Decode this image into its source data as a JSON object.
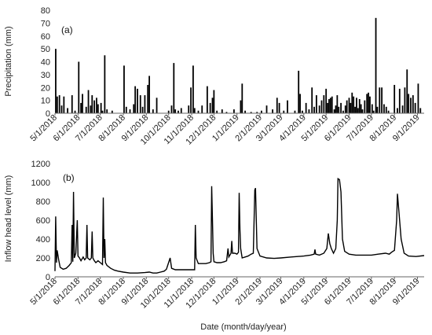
{
  "chart_data": [
    {
      "type": "bar",
      "panel_label": "(a)",
      "xlabel": "",
      "ylabel": "Precipitation (mm)",
      "ylim": [
        0,
        80
      ],
      "yticks": [
        0,
        10,
        20,
        30,
        40,
        50,
        60,
        70,
        80
      ],
      "xlim": [
        "2018-05-01",
        "2019-09-10"
      ],
      "xticks": [
        "2018-05-01",
        "2018-06-01",
        "2018-07-01",
        "2018-08-01",
        "2018-09-01",
        "2018-10-01",
        "2018-11-01",
        "2018-12-01",
        "2019-01-01",
        "2019-02-01",
        "2019-03-01",
        "2019-04-01",
        "2019-05-01",
        "2019-06-01",
        "2019-07-01",
        "2019-08-01",
        "2019-09-01"
      ],
      "xtick_labels": [
        "5/1/2018",
        "6/1/2018",
        "7/1/2018",
        "8/1/2018",
        "9/1/2018",
        "10/1/2018",
        "11/1/2018",
        "12/1/2018",
        "1/1/2019",
        "2/1/2019",
        "3/1/2019",
        "4/1/2019",
        "5/1/2019",
        "6/1/2019",
        "7/1/2019",
        "8/1/2019",
        "9/1/2019"
      ],
      "grid": false,
      "points": [
        [
          "2018-05-02",
          50
        ],
        [
          "2018-05-04",
          13
        ],
        [
          "2018-05-07",
          14
        ],
        [
          "2018-05-10",
          6
        ],
        [
          "2018-05-13",
          13
        ],
        [
          "2018-05-18",
          4
        ],
        [
          "2018-05-24",
          14
        ],
        [
          "2018-05-28",
          2
        ],
        [
          "2018-06-02",
          40
        ],
        [
          "2018-06-05",
          8
        ],
        [
          "2018-06-07",
          15
        ],
        [
          "2018-06-12",
          5
        ],
        [
          "2018-06-15",
          18
        ],
        [
          "2018-06-18",
          6
        ],
        [
          "2018-06-20",
          14
        ],
        [
          "2018-06-23",
          10
        ],
        [
          "2018-06-26",
          12
        ],
        [
          "2018-06-28",
          7
        ],
        [
          "2018-07-02",
          8
        ],
        [
          "2018-07-04",
          2
        ],
        [
          "2018-07-07",
          45
        ],
        [
          "2018-07-10",
          3
        ],
        [
          "2018-07-17",
          2
        ],
        [
          "2018-08-02",
          37
        ],
        [
          "2018-08-05",
          5
        ],
        [
          "2018-08-10",
          3
        ],
        [
          "2018-08-15",
          7
        ],
        [
          "2018-08-17",
          21
        ],
        [
          "2018-08-20",
          19
        ],
        [
          "2018-08-24",
          14
        ],
        [
          "2018-08-27",
          5
        ],
        [
          "2018-08-30",
          14
        ],
        [
          "2018-09-03",
          22
        ],
        [
          "2018-09-05",
          29
        ],
        [
          "2018-09-10",
          3
        ],
        [
          "2018-09-15",
          12
        ],
        [
          "2018-10-01",
          2
        ],
        [
          "2018-10-05",
          6
        ],
        [
          "2018-10-08",
          39
        ],
        [
          "2018-10-10",
          3
        ],
        [
          "2018-10-14",
          2
        ],
        [
          "2018-10-18",
          4
        ],
        [
          "2018-10-28",
          6
        ],
        [
          "2018-10-31",
          20
        ],
        [
          "2018-11-03",
          37
        ],
        [
          "2018-11-05",
          4
        ],
        [
          "2018-11-10",
          2
        ],
        [
          "2018-11-15",
          6
        ],
        [
          "2018-11-22",
          21
        ],
        [
          "2018-11-26",
          8
        ],
        [
          "2018-11-29",
          12
        ],
        [
          "2018-12-01",
          18
        ],
        [
          "2018-12-05",
          2
        ],
        [
          "2018-12-12",
          3
        ],
        [
          "2018-12-18",
          1
        ],
        [
          "2018-12-28",
          3
        ],
        [
          "2019-01-06",
          10
        ],
        [
          "2019-01-08",
          23
        ],
        [
          "2019-01-12",
          2
        ],
        [
          "2019-01-20",
          1
        ],
        [
          "2019-01-28",
          1
        ],
        [
          "2019-02-03",
          2
        ],
        [
          "2019-02-10",
          6
        ],
        [
          "2019-02-18",
          3
        ],
        [
          "2019-02-24",
          12
        ],
        [
          "2019-02-27",
          8
        ],
        [
          "2019-03-05",
          2
        ],
        [
          "2019-03-10",
          10
        ],
        [
          "2019-03-20",
          2
        ],
        [
          "2019-03-25",
          33
        ],
        [
          "2019-03-27",
          15
        ],
        [
          "2019-03-30",
          2
        ],
        [
          "2019-04-04",
          8
        ],
        [
          "2019-04-08",
          3
        ],
        [
          "2019-04-12",
          20
        ],
        [
          "2019-04-15",
          5
        ],
        [
          "2019-04-18",
          14
        ],
        [
          "2019-04-22",
          6
        ],
        [
          "2019-04-25",
          10
        ],
        [
          "2019-04-28",
          14
        ],
        [
          "2019-05-01",
          19
        ],
        [
          "2019-05-03",
          8
        ],
        [
          "2019-05-05",
          11
        ],
        [
          "2019-05-07",
          12
        ],
        [
          "2019-05-09",
          13
        ],
        [
          "2019-05-12",
          3
        ],
        [
          "2019-05-14",
          6
        ],
        [
          "2019-05-16",
          14
        ],
        [
          "2019-05-18",
          5
        ],
        [
          "2019-05-21",
          8
        ],
        [
          "2019-05-24",
          2
        ],
        [
          "2019-05-27",
          6
        ],
        [
          "2019-05-29",
          10
        ],
        [
          "2019-06-01",
          12
        ],
        [
          "2019-06-03",
          8
        ],
        [
          "2019-06-05",
          16
        ],
        [
          "2019-06-07",
          13
        ],
        [
          "2019-06-09",
          5
        ],
        [
          "2019-06-11",
          12
        ],
        [
          "2019-06-13",
          4
        ],
        [
          "2019-06-15",
          11
        ],
        [
          "2019-06-17",
          7
        ],
        [
          "2019-06-19",
          3
        ],
        [
          "2019-06-22",
          10
        ],
        [
          "2019-06-25",
          15
        ],
        [
          "2019-06-27",
          16
        ],
        [
          "2019-06-29",
          13
        ],
        [
          "2019-07-02",
          7
        ],
        [
          "2019-07-04",
          2
        ],
        [
          "2019-07-07",
          74
        ],
        [
          "2019-07-09",
          5
        ],
        [
          "2019-07-12",
          20
        ],
        [
          "2019-07-15",
          20
        ],
        [
          "2019-07-18",
          7
        ],
        [
          "2019-07-21",
          5
        ],
        [
          "2019-07-24",
          2
        ],
        [
          "2019-08-01",
          22
        ],
        [
          "2019-08-05",
          4
        ],
        [
          "2019-08-08",
          19
        ],
        [
          "2019-08-12",
          6
        ],
        [
          "2019-08-15",
          20
        ],
        [
          "2019-08-18",
          34
        ],
        [
          "2019-08-20",
          15
        ],
        [
          "2019-08-23",
          12
        ],
        [
          "2019-08-26",
          14
        ],
        [
          "2019-08-29",
          8
        ],
        [
          "2019-09-02",
          23
        ],
        [
          "2019-09-05",
          4
        ]
      ]
    },
    {
      "type": "line",
      "panel_label": "(b)",
      "xlabel": "Date (month/day/year)",
      "ylabel": "Inflow head level (mm)",
      "ylim": [
        0,
        1200
      ],
      "yticks": [
        0,
        200,
        400,
        600,
        800,
        1000,
        1200
      ],
      "xlim": [
        "2018-05-01",
        "2019-09-10"
      ],
      "xticks": [
        "2018-05-01",
        "2018-06-01",
        "2018-07-01",
        "2018-08-01",
        "2018-09-01",
        "2018-10-01",
        "2018-11-01",
        "2018-12-01",
        "2019-01-01",
        "2019-02-01",
        "2019-03-01",
        "2019-04-01",
        "2019-05-01",
        "2019-06-01",
        "2019-07-01",
        "2019-08-01",
        "2019-09-01"
      ],
      "xtick_labels": [
        "5/1/2018",
        "6/1/2018",
        "7/1/2018",
        "8/1/2018",
        "9/1/2018",
        "10/1/2018",
        "11/1/2018",
        "12/1/2018",
        "1/1/2019",
        "2/1/2019",
        "3/1/2019",
        "4/1/2019",
        "5/1/2019",
        "6/1/2019",
        "7/1/2019",
        "8/1/2019",
        "9/1/2019"
      ],
      "grid": false,
      "points": [
        [
          "2018-05-01",
          60
        ],
        [
          "2018-05-02",
          640
        ],
        [
          "2018-05-03",
          150
        ],
        [
          "2018-05-04",
          280
        ],
        [
          "2018-05-06",
          180
        ],
        [
          "2018-05-08",
          100
        ],
        [
          "2018-05-12",
          80
        ],
        [
          "2018-05-16",
          90
        ],
        [
          "2018-05-20",
          120
        ],
        [
          "2018-05-23",
          150
        ],
        [
          "2018-05-24",
          550
        ],
        [
          "2018-05-25",
          160
        ],
        [
          "2018-05-26",
          900
        ],
        [
          "2018-05-27",
          200
        ],
        [
          "2018-05-29",
          250
        ],
        [
          "2018-05-31",
          600
        ],
        [
          "2018-06-01",
          220
        ],
        [
          "2018-06-03",
          200
        ],
        [
          "2018-06-05",
          170
        ],
        [
          "2018-06-08",
          210
        ],
        [
          "2018-06-10",
          180
        ],
        [
          "2018-06-12",
          200
        ],
        [
          "2018-06-13",
          550
        ],
        [
          "2018-06-14",
          200
        ],
        [
          "2018-06-17",
          180
        ],
        [
          "2018-06-19",
          200
        ],
        [
          "2018-06-20",
          480
        ],
        [
          "2018-06-21",
          200
        ],
        [
          "2018-06-23",
          170
        ],
        [
          "2018-06-25",
          150
        ],
        [
          "2018-06-28",
          170
        ],
        [
          "2018-07-01",
          150
        ],
        [
          "2018-07-04",
          130
        ],
        [
          "2018-07-05",
          840
        ],
        [
          "2018-07-06",
          200
        ],
        [
          "2018-07-07",
          400
        ],
        [
          "2018-07-08",
          150
        ],
        [
          "2018-07-10",
          120
        ],
        [
          "2018-07-15",
          90
        ],
        [
          "2018-07-20",
          70
        ],
        [
          "2018-07-25",
          60
        ],
        [
          "2018-08-01",
          50
        ],
        [
          "2018-08-10",
          40
        ],
        [
          "2018-08-20",
          40
        ],
        [
          "2018-08-30",
          45
        ],
        [
          "2018-09-05",
          50
        ],
        [
          "2018-09-10",
          40
        ],
        [
          "2018-09-15",
          40
        ],
        [
          "2018-09-20",
          50
        ],
        [
          "2018-09-25",
          60
        ],
        [
          "2018-09-28",
          80
        ],
        [
          "2018-10-03",
          200
        ],
        [
          "2018-10-05",
          90
        ],
        [
          "2018-10-10",
          75
        ],
        [
          "2018-10-20",
          75
        ],
        [
          "2018-10-31",
          75
        ],
        [
          "2018-11-05",
          75
        ],
        [
          "2018-11-06",
          550
        ],
        [
          "2018-11-07",
          200
        ],
        [
          "2018-11-10",
          140
        ],
        [
          "2018-11-15",
          140
        ],
        [
          "2018-11-20",
          140
        ],
        [
          "2018-11-25",
          150
        ],
        [
          "2018-11-27",
          160
        ],
        [
          "2018-11-28",
          960
        ],
        [
          "2018-11-29",
          600
        ],
        [
          "2018-11-30",
          250
        ],
        [
          "2018-12-01",
          160
        ],
        [
          "2018-12-05",
          150
        ],
        [
          "2018-12-10",
          150
        ],
        [
          "2018-12-15",
          160
        ],
        [
          "2018-12-18",
          170
        ],
        [
          "2018-12-20",
          300
        ],
        [
          "2018-12-21",
          210
        ],
        [
          "2018-12-24",
          250
        ],
        [
          "2018-12-25",
          380
        ],
        [
          "2018-12-26",
          250
        ],
        [
          "2018-12-29",
          250
        ],
        [
          "2019-01-01",
          240
        ],
        [
          "2019-01-03",
          260
        ],
        [
          "2019-01-04",
          890
        ],
        [
          "2019-01-05",
          500
        ],
        [
          "2019-01-06",
          300
        ],
        [
          "2019-01-08",
          200
        ],
        [
          "2019-01-12",
          210
        ],
        [
          "2019-01-16",
          220
        ],
        [
          "2019-01-20",
          240
        ],
        [
          "2019-01-23",
          250
        ],
        [
          "2019-01-25",
          920
        ],
        [
          "2019-01-26",
          940
        ],
        [
          "2019-01-27",
          600
        ],
        [
          "2019-01-28",
          300
        ],
        [
          "2019-02-01",
          220
        ],
        [
          "2019-02-10",
          200
        ],
        [
          "2019-02-20",
          195
        ],
        [
          "2019-03-01",
          200
        ],
        [
          "2019-03-15",
          210
        ],
        [
          "2019-04-01",
          220
        ],
        [
          "2019-04-10",
          230
        ],
        [
          "2019-04-15",
          240
        ],
        [
          "2019-04-16",
          290
        ],
        [
          "2019-04-17",
          240
        ],
        [
          "2019-04-22",
          230
        ],
        [
          "2019-04-28",
          250
        ],
        [
          "2019-05-02",
          300
        ],
        [
          "2019-05-04",
          460
        ],
        [
          "2019-05-06",
          350
        ],
        [
          "2019-05-08",
          300
        ],
        [
          "2019-05-11",
          250
        ],
        [
          "2019-05-14",
          300
        ],
        [
          "2019-05-16",
          600
        ],
        [
          "2019-05-17",
          1040
        ],
        [
          "2019-05-19",
          1030
        ],
        [
          "2019-05-21",
          900
        ],
        [
          "2019-05-23",
          400
        ],
        [
          "2019-05-26",
          270
        ],
        [
          "2019-06-01",
          240
        ],
        [
          "2019-06-10",
          230
        ],
        [
          "2019-06-20",
          230
        ],
        [
          "2019-07-01",
          230
        ],
        [
          "2019-07-10",
          240
        ],
        [
          "2019-07-20",
          250
        ],
        [
          "2019-07-25",
          240
        ],
        [
          "2019-07-28",
          260
        ],
        [
          "2019-08-01",
          280
        ],
        [
          "2019-08-04",
          600
        ],
        [
          "2019-08-05",
          880
        ],
        [
          "2019-08-07",
          700
        ],
        [
          "2019-08-10",
          400
        ],
        [
          "2019-08-14",
          250
        ],
        [
          "2019-08-20",
          220
        ],
        [
          "2019-08-30",
          215
        ],
        [
          "2019-09-10",
          225
        ]
      ]
    }
  ]
}
